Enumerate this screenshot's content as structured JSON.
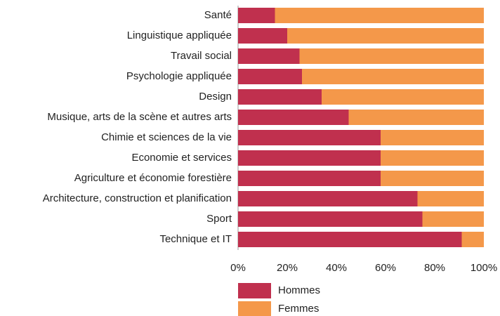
{
  "chart_data": {
    "type": "stacked-barh",
    "categories": [
      "Santé",
      "Linguistique appliquée",
      "Travail social",
      "Psychologie appliquée",
      "Design",
      "Musique, arts de la scène et autres arts",
      "Chimie et sciences de la vie",
      "Economie et services",
      "Agriculture et économie forestière",
      "Architecture, construction et planification",
      "Sport",
      "Technique et IT"
    ],
    "series": [
      {
        "name": "Hommes",
        "color": "#c0304e",
        "values": [
          15,
          20,
          25,
          26,
          34,
          45,
          58,
          58,
          58,
          73,
          75,
          91
        ]
      },
      {
        "name": "Femmes",
        "color": "#f4984a",
        "values": [
          85,
          80,
          75,
          74,
          66,
          55,
          42,
          42,
          42,
          27,
          25,
          9
        ]
      }
    ],
    "xlim": [
      0,
      100
    ],
    "xticks": [
      {
        "value": 0,
        "label": "0%"
      },
      {
        "value": 20,
        "label": "20%"
      },
      {
        "value": 40,
        "label": "40%"
      },
      {
        "value": 60,
        "label": "60%"
      },
      {
        "value": 80,
        "label": "80%"
      },
      {
        "value": 100,
        "label": "100%"
      }
    ],
    "legend": "bottom"
  }
}
